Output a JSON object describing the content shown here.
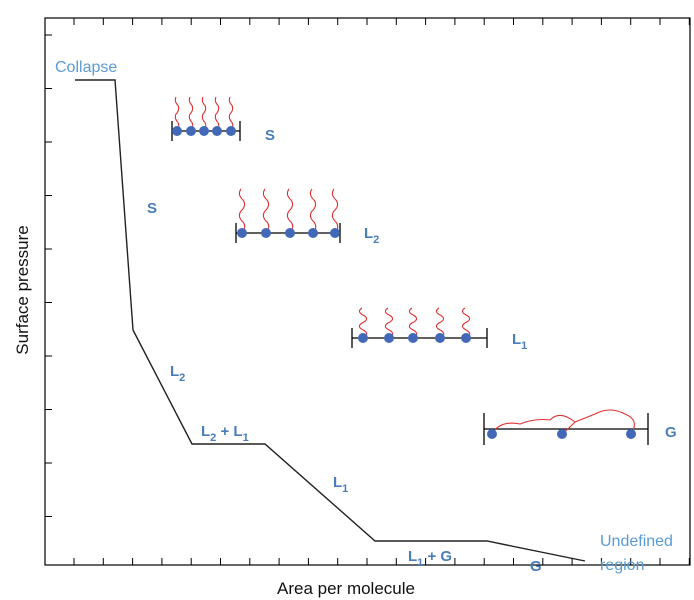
{
  "axes": {
    "x_label": "Area per molecule",
    "y_label": "Surface pressure"
  },
  "collapse": "Collapse",
  "undefined_region": [
    "Undefined",
    "region"
  ],
  "curve_labels": [
    {
      "parts": [
        {
          "text": "S"
        }
      ]
    },
    {
      "parts": [
        {
          "text": "L"
        },
        {
          "sub": "2"
        }
      ]
    },
    {
      "parts": [
        {
          "text": "L"
        },
        {
          "sub": "2"
        },
        {
          "text": " + L"
        },
        {
          "sub": "1"
        }
      ]
    },
    {
      "parts": [
        {
          "text": "L"
        },
        {
          "sub": "1"
        }
      ]
    },
    {
      "parts": [
        {
          "text": "L"
        },
        {
          "sub": "1"
        },
        {
          "text": " + G"
        }
      ]
    },
    {
      "parts": [
        {
          "text": "G"
        }
      ]
    }
  ],
  "molecule_labels": [
    {
      "parts": [
        {
          "text": "S"
        }
      ]
    },
    {
      "parts": [
        {
          "text": "L"
        },
        {
          "sub": "2"
        }
      ]
    },
    {
      "parts": [
        {
          "text": "L"
        },
        {
          "sub": "1"
        }
      ]
    },
    {
      "parts": [
        {
          "text": "G"
        }
      ]
    }
  ]
}
